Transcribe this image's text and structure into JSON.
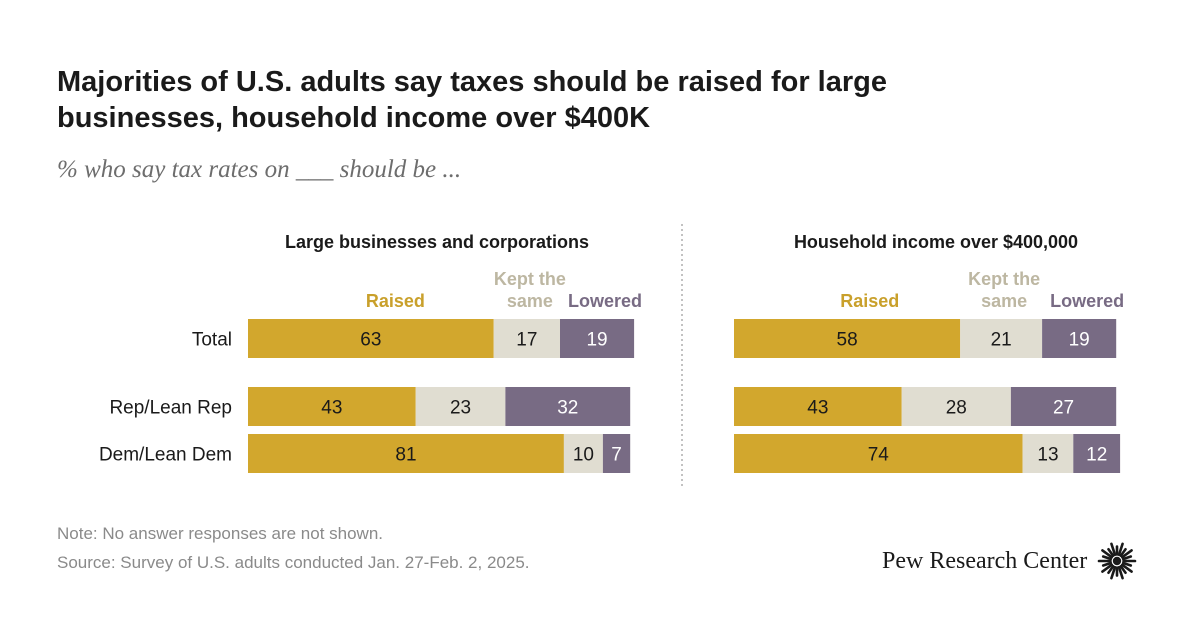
{
  "title": "Majorities of U.S. adults say taxes should be raised for large businesses, household income over $400K",
  "subtitle": "% who say tax rates on ___ should be ...",
  "note": "Note: No answer responses are not shown.",
  "source": "Source: Survey of U.S. adults conducted Jan. 27-Feb. 2, 2025.",
  "brand": "Pew Research Center",
  "brand_icon": "pew-sunburst-icon",
  "colors": {
    "raised": "#d2a72d",
    "kept": "#e0ddd1",
    "lowered": "#786b84",
    "raised_label": "#c9a02b",
    "kept_label": "#bdb7a2",
    "lowered_label": "#786b84"
  },
  "chart_data": [
    {
      "type": "bar",
      "orientation": "horizontal",
      "stacked": true,
      "title": "Large businesses and corporations",
      "categories": [
        "Total",
        "Rep/Lean Rep",
        "Dem/Lean Dem"
      ],
      "series": [
        {
          "name": "Raised",
          "values": [
            63,
            43,
            81
          ]
        },
        {
          "name": "Kept the same",
          "values": [
            17,
            23,
            10
          ]
        },
        {
          "name": "Lowered",
          "values": [
            19,
            32,
            7
          ]
        }
      ],
      "xlim": [
        0,
        100
      ]
    },
    {
      "type": "bar",
      "orientation": "horizontal",
      "stacked": true,
      "title": "Household income over $400,000",
      "categories": [
        "Total",
        "Rep/Lean Rep",
        "Dem/Lean Dem"
      ],
      "series": [
        {
          "name": "Raised",
          "values": [
            58,
            43,
            74
          ]
        },
        {
          "name": "Kept the same",
          "values": [
            21,
            28,
            13
          ]
        },
        {
          "name": "Lowered",
          "values": [
            19,
            27,
            12
          ]
        }
      ],
      "xlim": [
        0,
        100
      ]
    }
  ]
}
